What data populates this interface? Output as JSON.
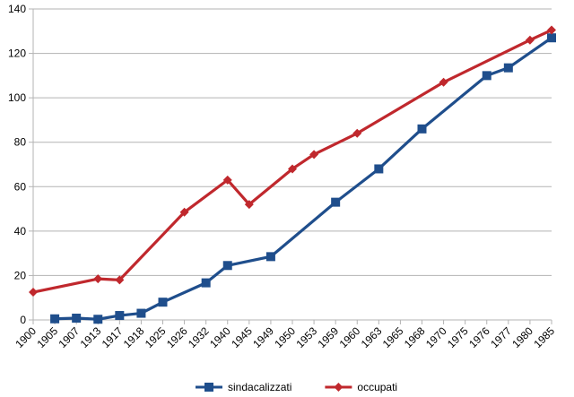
{
  "chart_data": {
    "type": "line",
    "title": "",
    "xlabel": "",
    "ylabel": "",
    "ylim": [
      0,
      140
    ],
    "yticks": [
      0,
      20,
      40,
      60,
      80,
      100,
      120,
      140
    ],
    "grid": true,
    "legend": "bottom-center",
    "categories": [
      "1900",
      "1905",
      "1907",
      "1913",
      "1917",
      "1918",
      "1925",
      "1926",
      "1932",
      "1940",
      "1945",
      "1949",
      "1950",
      "1953",
      "1959",
      "1960",
      "1963",
      "1965",
      "1968",
      "1970",
      "1975",
      "1976",
      "1977",
      "1980",
      "1985"
    ],
    "series": [
      {
        "name": "sindacalizzati",
        "color": "#1f4e8c",
        "marker": "square",
        "values": [
          null,
          0.5,
          0.8,
          0.3,
          2,
          3,
          8,
          null,
          16.7,
          24.5,
          null,
          28.5,
          null,
          null,
          53,
          null,
          68,
          null,
          86,
          null,
          null,
          110,
          113.5,
          null,
          127
        ]
      },
      {
        "name": "occupati",
        "color": "#c0282d",
        "marker": "diamond",
        "values": [
          12.5,
          null,
          null,
          18.5,
          18,
          null,
          null,
          48.5,
          null,
          63,
          52,
          null,
          68,
          74.5,
          null,
          84,
          null,
          null,
          null,
          107,
          null,
          null,
          null,
          126,
          130.5
        ]
      }
    ]
  }
}
